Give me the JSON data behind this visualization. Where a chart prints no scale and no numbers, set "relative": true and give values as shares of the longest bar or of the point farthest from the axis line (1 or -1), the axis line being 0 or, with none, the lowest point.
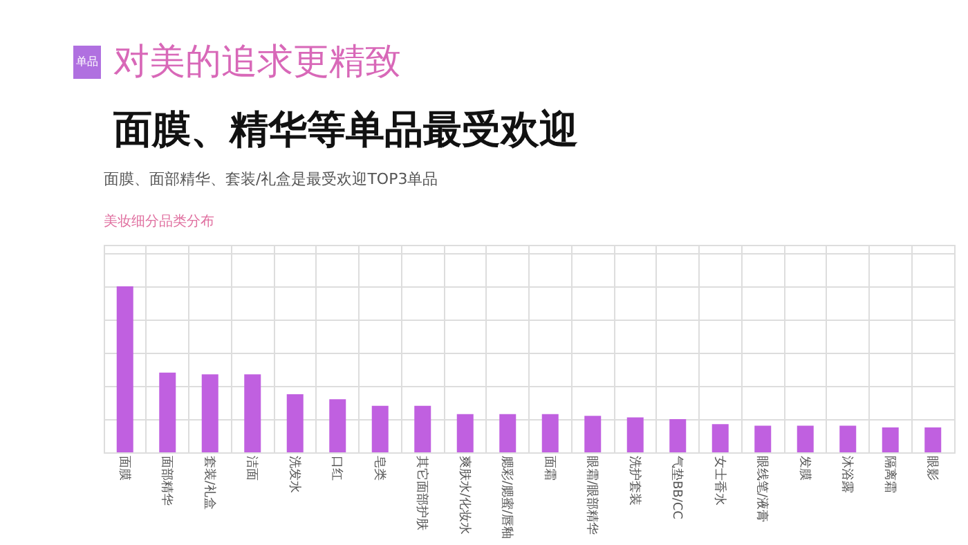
{
  "chart_data": {
    "type": "bar",
    "title": "对美的追求更精致",
    "subtitle": "面膜、精华等单品最受欢迎",
    "relative": true,
    "grid": true,
    "color": "#c060e0",
    "categories": [
      "面膜",
      "面部精华",
      "套装/礼盒",
      "洁面",
      "洗发水",
      "口红",
      "皂类",
      "其它面部护肤",
      "爽肤水/化妆水",
      "腮彩/腮蜜/唇釉",
      "面霜",
      "眼霜/眼部精华",
      "洗护套装",
      "气垫BB/CC",
      "女士香水",
      "眼线笔/液膏",
      "发膜",
      "沐浴露",
      "隔离霜",
      "眼影"
    ],
    "values": [
      1,
      0.48,
      0.47,
      0.47,
      0.35,
      0.32,
      0.28,
      0.28,
      0.23,
      0.23,
      0.23,
      0.22,
      0.21,
      0.2,
      0.17,
      0.16,
      0.16,
      0.16,
      0.15,
      0.15
    ],
    "annotations": [
      "单品",
      "面膜、面部精华、套装/礼盒是最受欢迎TOP3单品",
      "美妆细分品类分布"
    ]
  }
}
